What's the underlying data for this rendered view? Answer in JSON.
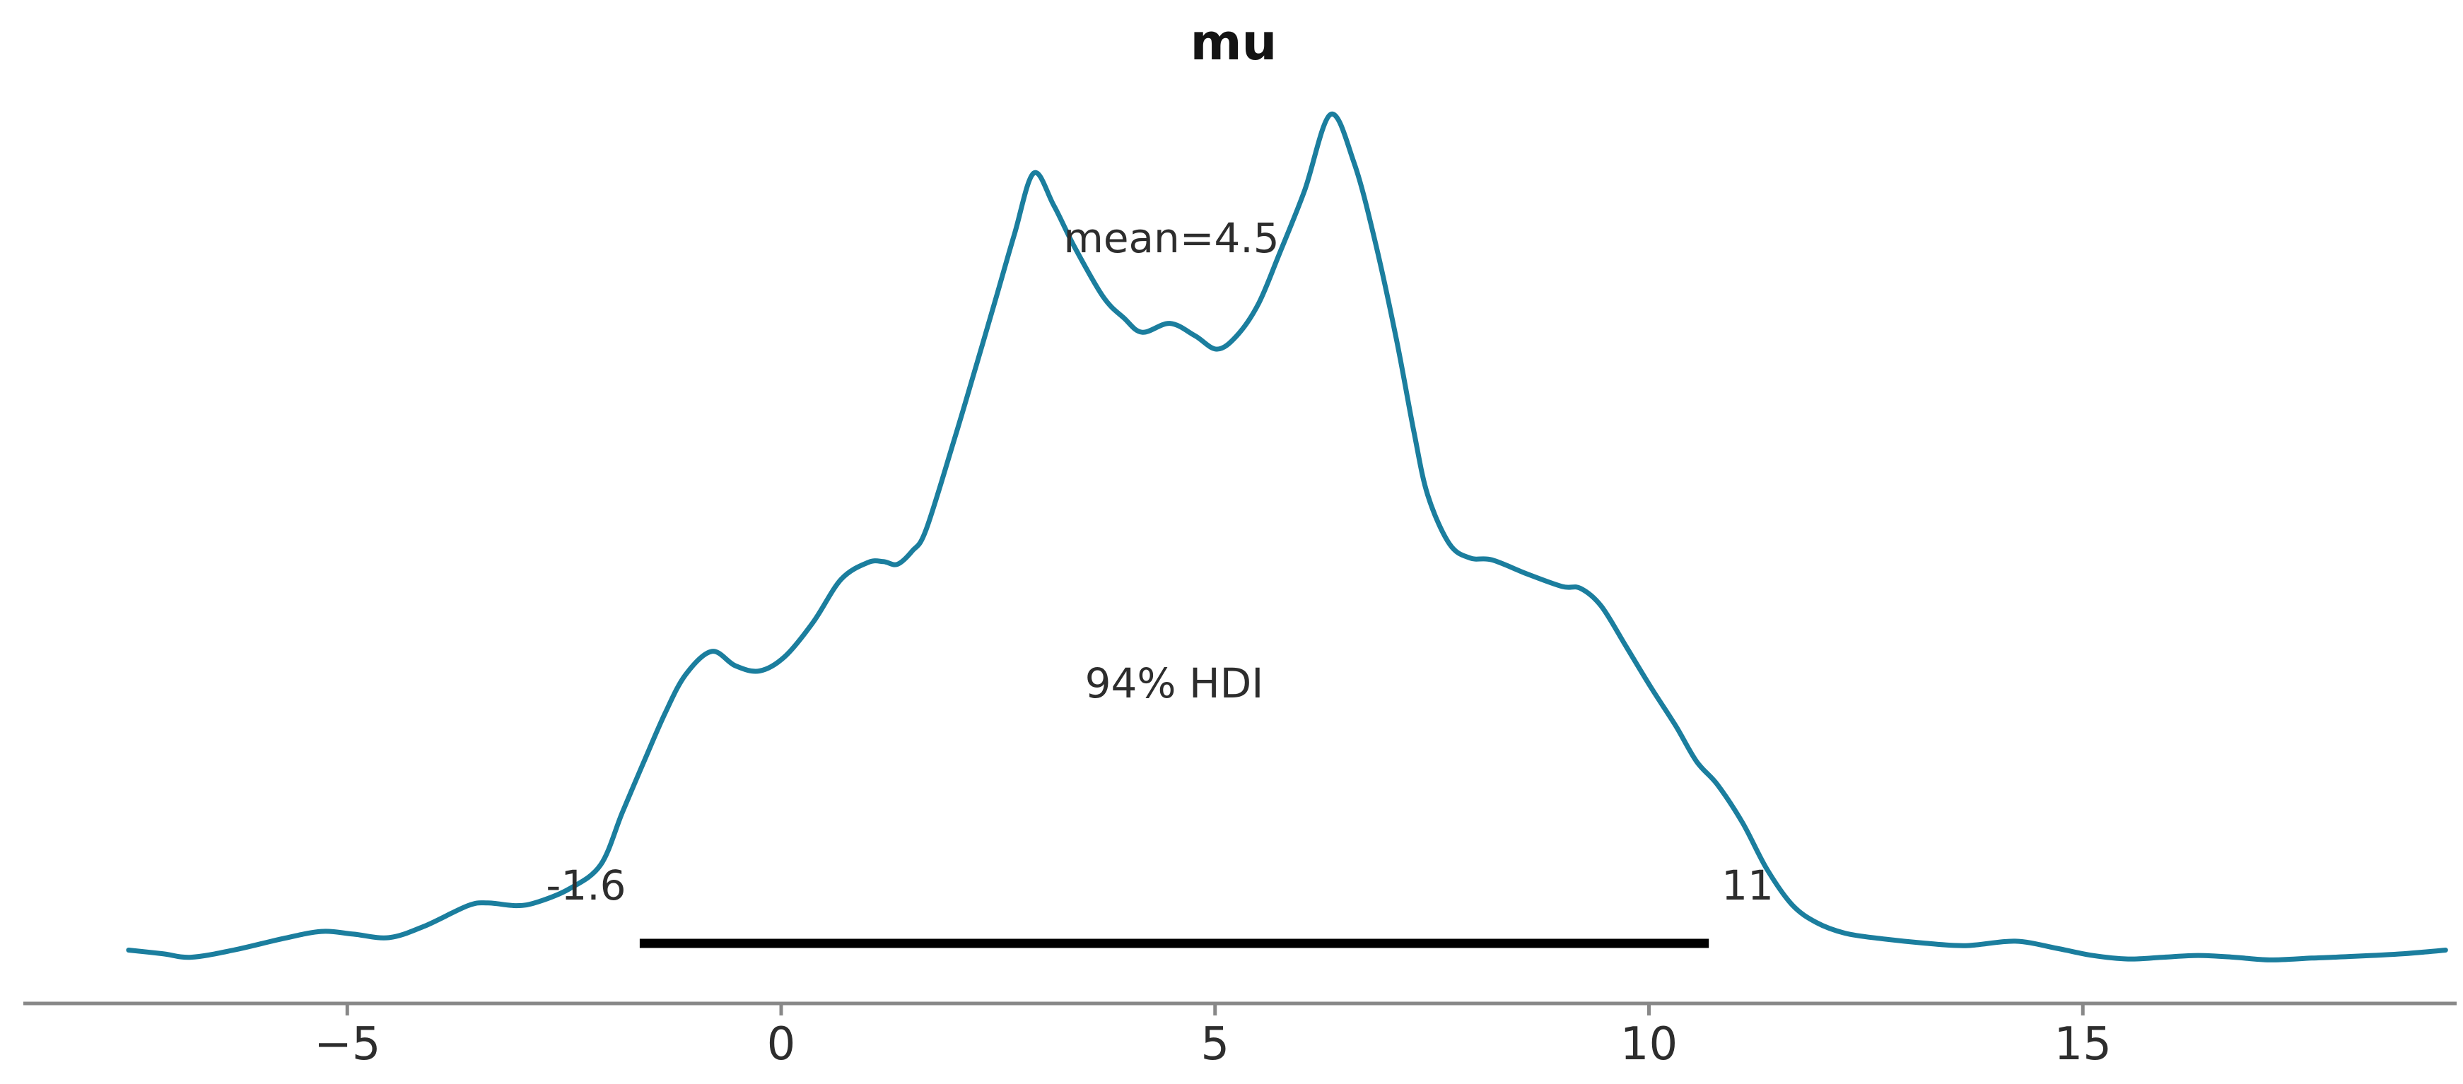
{
  "title": "mu",
  "annotations": {
    "mean_label": "mean=4.5",
    "hdi_label": "94% HDI",
    "hdi_lower_label": "-1.6",
    "hdi_upper_label": "11"
  },
  "x_axis": {
    "ticks": [
      -5,
      0,
      5,
      10,
      15
    ],
    "tick_labels": [
      "−5",
      "0",
      "5",
      "10",
      "15"
    ]
  },
  "colors": {
    "curve": "#1b7e9e",
    "hdi_bar": "#000000",
    "axis": "#888888",
    "tick_label": "#2d2d2d",
    "annotation": "#2d2d2d",
    "title": "#141414"
  },
  "chart_data": {
    "type": "line",
    "subtype": "kde-posterior",
    "title": "mu",
    "xlabel": "",
    "ylabel": "",
    "xlim": [
      -7.6,
      19.3
    ],
    "x_ticks": [
      -5,
      0,
      5,
      10,
      15
    ],
    "grid": false,
    "legend": false,
    "mean": 4.5,
    "hdi": {
      "probability": 0.94,
      "lower": -1.6,
      "upper": 11,
      "bar_from": -1.63,
      "bar_to": 10.69
    },
    "series": [
      {
        "name": "posterior density of mu",
        "x": [
          -7.52,
          -7.13,
          -6.8,
          -6.31,
          -5.74,
          -5.3,
          -4.93,
          -4.52,
          -4.11,
          -3.61,
          -3.38,
          -3.05,
          -2.81,
          -2.44,
          -2.08,
          -1.83,
          -1.59,
          -1.34,
          -1.1,
          -0.8,
          -0.53,
          -0.25,
          0.04,
          0.37,
          0.69,
          1.0,
          1.18,
          1.34,
          1.51,
          1.67,
          2.0,
          2.24,
          2.48,
          2.69,
          2.91,
          3.14,
          3.38,
          3.71,
          3.95,
          4.16,
          4.48,
          4.77,
          5.02,
          5.25,
          5.5,
          5.74,
          6.03,
          6.33,
          6.6,
          6.84,
          7.09,
          7.29,
          7.45,
          7.7,
          7.94,
          8.19,
          8.6,
          9.0,
          9.21,
          9.45,
          9.74,
          10.02,
          10.31,
          10.55,
          10.79,
          11.08,
          11.36,
          11.65,
          11.93,
          12.26,
          12.67,
          13.16,
          13.65,
          14.22,
          14.7,
          15.11,
          15.52,
          15.93,
          16.33,
          16.74,
          17.15,
          17.64,
          18.13,
          18.7,
          19.18
        ],
        "density_normalized": [
          0.06,
          0.056,
          0.052,
          0.06,
          0.073,
          0.081,
          0.078,
          0.074,
          0.087,
          0.11,
          0.113,
          0.11,
          0.114,
          0.129,
          0.156,
          0.215,
          0.27,
          0.326,
          0.37,
          0.396,
          0.38,
          0.374,
          0.39,
          0.429,
          0.477,
          0.496,
          0.497,
          0.494,
          0.509,
          0.533,
          0.636,
          0.715,
          0.795,
          0.866,
          0.934,
          0.898,
          0.851,
          0.795,
          0.771,
          0.755,
          0.765,
          0.751,
          0.736,
          0.751,
          0.787,
          0.843,
          0.914,
          1.0,
          0.946,
          0.859,
          0.747,
          0.644,
          0.572,
          0.517,
          0.501,
          0.499,
          0.483,
          0.469,
          0.467,
          0.447,
          0.401,
          0.356,
          0.312,
          0.272,
          0.246,
          0.203,
          0.151,
          0.111,
          0.091,
          0.079,
          0.073,
          0.068,
          0.065,
          0.07,
          0.062,
          0.054,
          0.05,
          0.052,
          0.054,
          0.052,
          0.049,
          0.051,
          0.053,
          0.056,
          0.06
        ]
      }
    ]
  }
}
